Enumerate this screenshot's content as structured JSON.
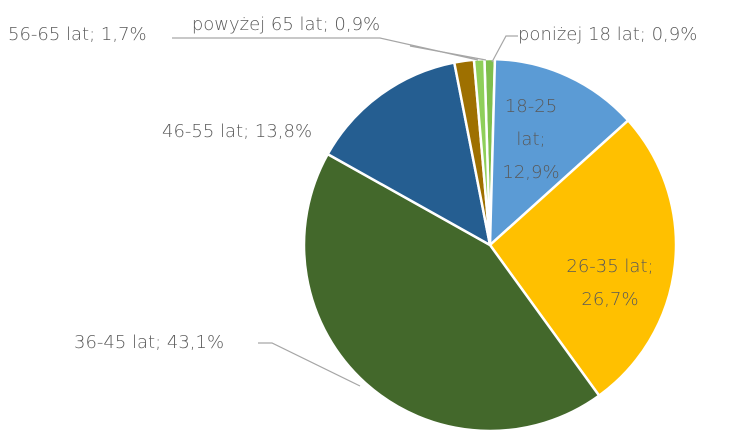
{
  "chart_data": {
    "type": "pie",
    "categories": [
      "poniżej 18 lat",
      "18-25 lat",
      "26-35 lat",
      "36-45 lat",
      "46-55 lat",
      "56-65 lat",
      "powyżej 65 lat"
    ],
    "values": [
      0.9,
      12.9,
      26.7,
      43.1,
      13.8,
      1.7,
      0.9
    ],
    "value_labels": [
      "poniżej 18 lat; 0,9%",
      "18-25 lat; 12,9%",
      "26-35 lat; 26,7%",
      "36-45 lat; 43,1%",
      "46-55 lat; 13,8%",
      "56-65 lat; 1,7%",
      "powyżej 65 lat; 0,9%"
    ],
    "colors": [
      "#7fbf4d",
      "#5b9bd5",
      "#ffc000",
      "#43682b",
      "#255e91",
      "#9e7000",
      "#8fcf5a"
    ]
  }
}
